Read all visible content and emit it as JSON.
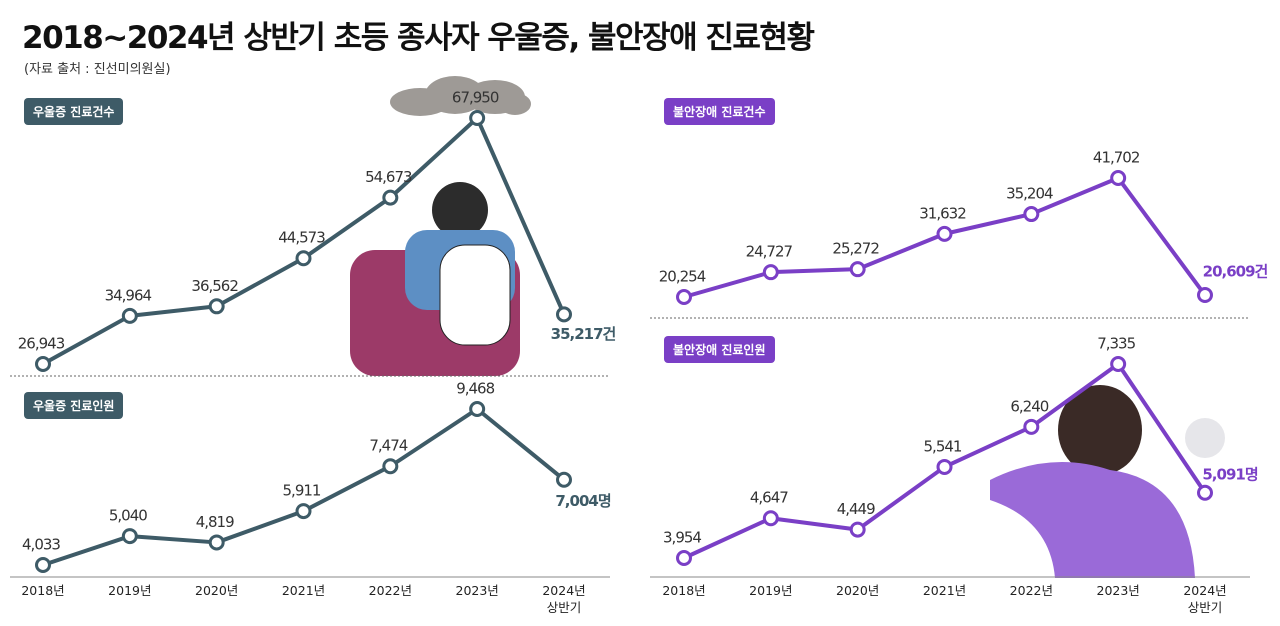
{
  "title": "2018~2024년 상반기 초등 종사자 우울증, 불안장애 진료현황",
  "source": "(자료 출처 : 진선미의원실)",
  "chart_data": [
    {
      "type": "line",
      "title": "우울증 진료건수",
      "color": "#3e5b67",
      "values": [
        26943,
        34964,
        36562,
        44573,
        54673,
        67950,
        35217
      ],
      "value_labels": [
        "26,943",
        "34,964",
        "36,562",
        "44,573",
        "54,673",
        "67,950",
        "35,217건"
      ]
    },
    {
      "type": "line",
      "title": "우울증 진료인원",
      "color": "#3e5b67",
      "categories": [
        "2018년",
        "2019년",
        "2020년",
        "2021년",
        "2022년",
        "2023년",
        "2024년\n상반기"
      ],
      "values": [
        4033,
        5040,
        4819,
        5911,
        7474,
        9468,
        7004
      ],
      "value_labels": [
        "4,033",
        "5,040",
        "4,819",
        "5,911",
        "7,474",
        "9,468",
        "7,004명"
      ]
    },
    {
      "type": "line",
      "title": "불안장애 진료건수",
      "color": "#7a3fc6",
      "values": [
        20254,
        24727,
        25272,
        31632,
        35204,
        41702,
        20609
      ],
      "value_labels": [
        "20,254",
        "24,727",
        "25,272",
        "31,632",
        "35,204",
        "41,702",
        "20,609건"
      ]
    },
    {
      "type": "line",
      "title": "불안장애 진료인원",
      "color": "#7a3fc6",
      "categories": [
        "2018년",
        "2019년",
        "2020년",
        "2021년",
        "2022년",
        "2023년",
        "2024년\n상반기"
      ],
      "values": [
        3954,
        4647,
        4449,
        5541,
        6240,
        7335,
        5091
      ],
      "value_labels": [
        "3,954",
        "4,647",
        "4,449",
        "5,541",
        "6,240",
        "7,335",
        "5,091명"
      ]
    }
  ]
}
